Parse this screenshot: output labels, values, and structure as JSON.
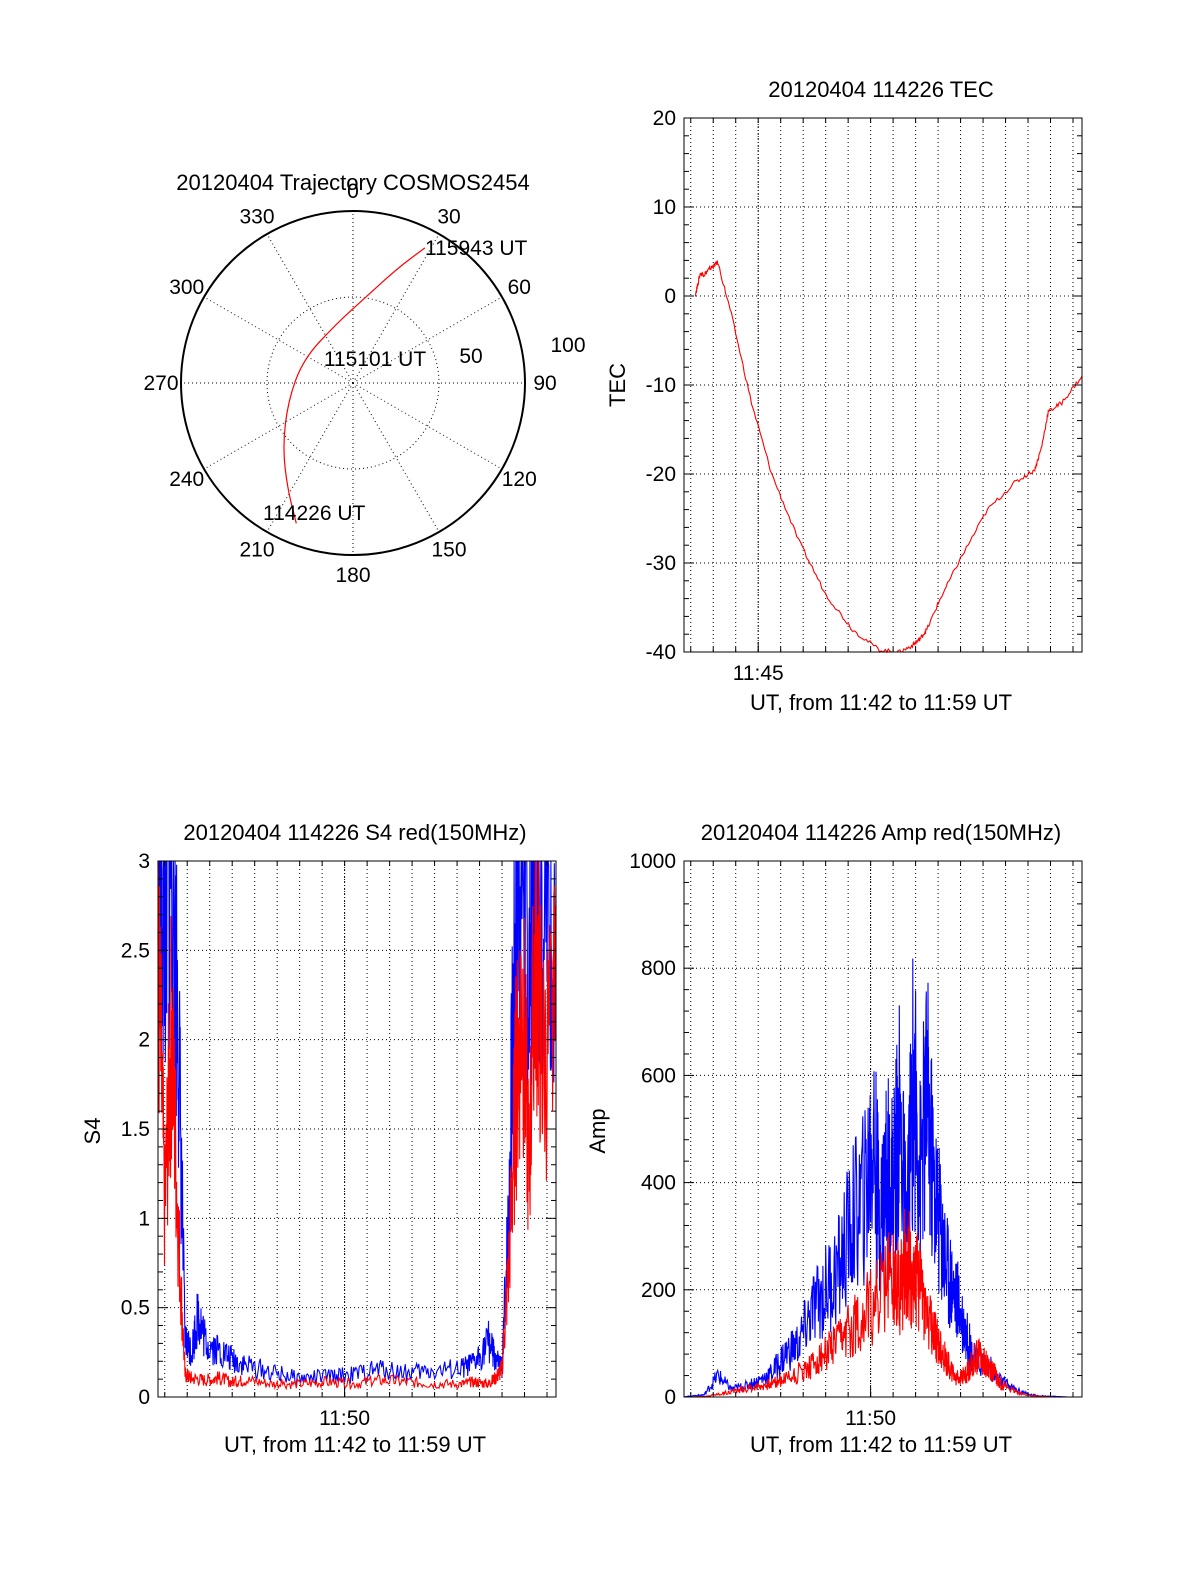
{
  "chart_data": [
    {
      "type": "polar",
      "title": "20120404 Trajectory COSMOS2454",
      "radial_ticks": [
        "50",
        "100"
      ],
      "radial_max": 100,
      "angle_labels": [
        "0",
        "30",
        "60",
        "90",
        "120",
        "150",
        "180",
        "210",
        "240",
        "270",
        "300",
        "330"
      ],
      "point_labels": [
        "115943 UT",
        "115101 UT",
        "114226 UT"
      ],
      "series": [
        {
          "color": "#ff0000",
          "points": [
            {
              "az": 202,
              "el_offset": 88
            },
            {
              "az": 212,
              "el_offset": 72
            },
            {
              "az": 228,
              "el_offset": 55
            },
            {
              "az": 255,
              "el_offset": 39
            },
            {
              "az": 296,
              "el_offset": 32
            },
            {
              "az": 345,
              "el_offset": 36
            },
            {
              "az": 8,
              "el_offset": 50
            },
            {
              "az": 21,
              "el_offset": 71
            },
            {
              "az": 28,
              "el_offset": 89
            }
          ]
        }
      ]
    },
    {
      "type": "line",
      "title": "20120404 114226 TEC",
      "xlabel": "UT, from 11:42 to 11:59 UT",
      "ylabel": "TEC",
      "xlim": [
        11.695,
        11.99
      ],
      "ylim": [
        -40,
        20
      ],
      "yticks": [
        "20",
        "10",
        "0",
        "-10",
        "-20",
        "-30",
        "-40"
      ],
      "xtick_labels": [
        {
          "x": 11.75,
          "label": "11:45"
        }
      ],
      "grid": true,
      "series": [
        {
          "color": "#ff0000",
          "x": [
            11.7035,
            11.707,
            11.71,
            11.7135,
            11.717,
            11.72,
            11.73,
            11.745,
            11.76,
            11.78,
            11.8,
            11.82,
            11.84,
            11.855,
            11.865,
            11.87,
            11.875,
            11.885,
            11.9,
            11.92,
            11.94,
            11.955,
            11.96,
            11.965,
            11.975,
            11.99
          ],
          "y": [
            0.2,
            2.5,
            2.4,
            3.0,
            3.4,
            3.8,
            -2,
            -12,
            -20,
            -27.5,
            -33.5,
            -37.5,
            -39.8,
            -40.0,
            -39.2,
            -38.5,
            -37.5,
            -34,
            -29.5,
            -24,
            -21,
            -19.5,
            -17,
            -13,
            -12,
            -9
          ]
        }
      ]
    },
    {
      "type": "line",
      "title": "20120404 114226 S4 red(150MHz)",
      "xlabel": "UT, from 11:42 to 11:59 UT",
      "ylabel": "S4",
      "xlim": [
        11.695,
        11.99
      ],
      "ylim": [
        0,
        3
      ],
      "yticks": [
        "3",
        "2.5",
        "2",
        "1.5",
        "1",
        "0.5",
        "0"
      ],
      "xtick_labels": [
        {
          "x": 11.8333,
          "label": "11:50"
        }
      ],
      "grid": true,
      "series": [
        {
          "color": "#0000ff",
          "x": [
            11.695,
            11.7,
            11.705,
            11.71,
            11.715,
            11.72,
            11.725,
            11.73,
            11.74,
            11.75,
            11.76,
            11.78,
            11.8,
            11.82,
            11.84,
            11.86,
            11.88,
            11.9,
            11.92,
            11.93,
            11.94,
            11.945,
            11.95,
            11.955,
            11.96,
            11.965,
            11.97,
            11.975,
            11.98,
            11.99
          ],
          "y": [
            3.0,
            2.5,
            3.0,
            2.0,
            0.3,
            0.25,
            0.45,
            0.3,
            0.25,
            0.2,
            0.17,
            0.13,
            0.1,
            0.11,
            0.12,
            0.15,
            0.13,
            0.14,
            0.15,
            0.18,
            0.3,
            0.2,
            0.15,
            1.0,
            2.6,
            3.0,
            2.2,
            3.0,
            2.5,
            2.7
          ]
        },
        {
          "color": "#ff0000",
          "x": [
            11.695,
            11.7,
            11.705,
            11.71,
            11.715,
            11.72,
            11.73,
            11.74,
            11.75,
            11.76,
            11.78,
            11.8,
            11.82,
            11.84,
            11.86,
            11.88,
            11.9,
            11.92,
            11.93,
            11.94,
            11.945,
            11.95,
            11.955,
            11.96,
            11.965,
            11.97,
            11.975,
            11.98,
            11.99
          ],
          "y": [
            2.4,
            1.0,
            2.0,
            0.9,
            0.12,
            0.1,
            0.09,
            0.1,
            0.08,
            0.09,
            0.07,
            0.07,
            0.08,
            0.07,
            0.09,
            0.08,
            0.07,
            0.07,
            0.08,
            0.07,
            0.1,
            0.15,
            0.7,
            1.6,
            2.2,
            1.2,
            2.5,
            1.8,
            2.0
          ]
        }
      ]
    },
    {
      "type": "line",
      "title": "20120404 114226 Amp red(150MHz)",
      "xlabel": "UT, from 11:42 to 11:59 UT",
      "ylabel": "Amp",
      "xlim": [
        11.695,
        11.99
      ],
      "ylim": [
        0,
        1000
      ],
      "yticks": [
        "1000",
        "800",
        "600",
        "400",
        "200",
        "0"
      ],
      "xtick_labels": [
        {
          "x": 11.8333,
          "label": "11:50"
        }
      ],
      "grid": true,
      "series": [
        {
          "color": "#0000ff",
          "x": [
            11.695,
            11.7,
            11.71,
            11.72,
            11.73,
            11.74,
            11.75,
            11.76,
            11.77,
            11.78,
            11.79,
            11.8,
            11.81,
            11.82,
            11.83,
            11.835,
            11.84,
            11.845,
            11.85,
            11.855,
            11.86,
            11.865,
            11.87,
            11.875,
            11.88,
            11.885,
            11.89,
            11.895,
            11.9,
            11.905,
            11.91,
            11.92,
            11.93,
            11.94,
            11.95,
            11.96,
            11.97,
            11.98,
            11.99
          ],
          "y": [
            0,
            2,
            4,
            40,
            15,
            20,
            30,
            45,
            80,
            100,
            160,
            200,
            240,
            330,
            380,
            500,
            330,
            420,
            400,
            520,
            300,
            600,
            420,
            560,
            400,
            320,
            240,
            200,
            160,
            110,
            70,
            60,
            30,
            15,
            5,
            2,
            1,
            0,
            0
          ]
        },
        {
          "color": "#ff0000",
          "x": [
            11.695,
            11.7,
            11.71,
            11.72,
            11.73,
            11.74,
            11.75,
            11.76,
            11.77,
            11.78,
            11.79,
            11.8,
            11.81,
            11.82,
            11.83,
            11.84,
            11.85,
            11.855,
            11.86,
            11.865,
            11.87,
            11.875,
            11.88,
            11.885,
            11.89,
            11.895,
            11.9,
            11.905,
            11.91,
            11.915,
            11.92,
            11.925,
            11.93,
            11.94,
            11.95,
            11.96,
            11.97,
            11.98,
            11.99
          ],
          "y": [
            0,
            0,
            1,
            5,
            10,
            15,
            20,
            25,
            35,
            45,
            60,
            80,
            100,
            130,
            160,
            190,
            230,
            200,
            260,
            210,
            220,
            150,
            120,
            90,
            65,
            40,
            35,
            45,
            70,
            80,
            60,
            45,
            25,
            10,
            3,
            1,
            0,
            0,
            0
          ]
        }
      ]
    }
  ]
}
